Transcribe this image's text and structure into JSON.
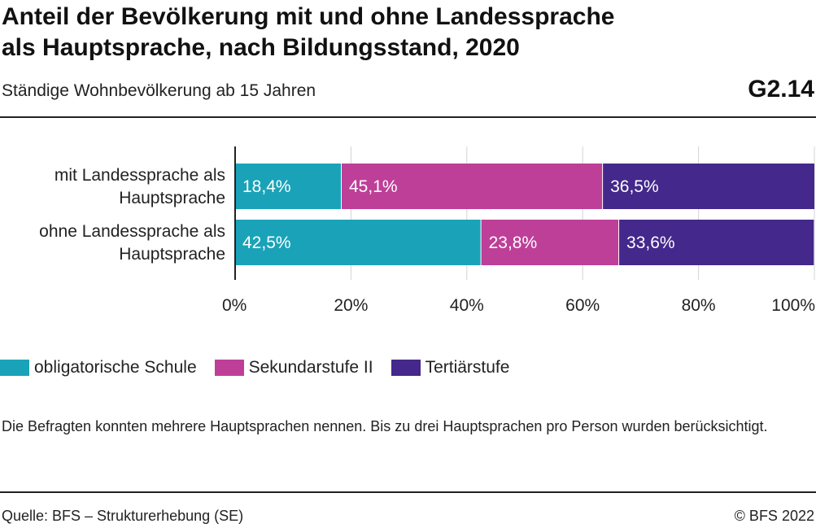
{
  "header": {
    "title_line1": "Anteil der Bevölkerung mit und ohne Landessprache",
    "title_line2": "als Hauptsprache, nach Bildungsstand, 2020",
    "subtitle": "Ständige Wohnbevölkerung ab 15 Jahren",
    "graph_id": "G2.14"
  },
  "chart_data": {
    "type": "bar",
    "orientation": "horizontal",
    "stacked": true,
    "categories": [
      [
        "mit Landessprache als",
        "Hauptsprache"
      ],
      [
        "ohne Landessprache als",
        "Hauptsprache"
      ]
    ],
    "series": [
      {
        "name": "obligatorische Schule",
        "color": "#1aa3b8",
        "values": [
          18.4,
          42.5
        ],
        "labels": [
          "18,4%",
          "42,5%"
        ]
      },
      {
        "name": "Sekundarstufe II",
        "color": "#be3f98",
        "values": [
          45.1,
          23.8
        ],
        "labels": [
          "45,1%",
          "23,8%"
        ]
      },
      {
        "name": "Tertiärstufe",
        "color": "#44288b",
        "values": [
          36.5,
          33.6
        ],
        "labels": [
          "36,5%",
          "33,6%"
        ]
      }
    ],
    "x_ticks": [
      0,
      20,
      40,
      60,
      80,
      100
    ],
    "x_tick_labels": [
      "0%",
      "20%",
      "40%",
      "60%",
      "80%",
      "100%"
    ],
    "xlim": [
      0,
      100
    ],
    "grid": true,
    "legend_position": "bottom-left"
  },
  "note": "Die Befragten konnten mehrere Hauptsprachen nennen. Bis zu drei Hauptsprachen pro Person wurden berücksichtigt.",
  "footer": {
    "source": "Quelle: BFS – Strukturerhebung (SE)",
    "copyright": "© BFS 2022"
  }
}
